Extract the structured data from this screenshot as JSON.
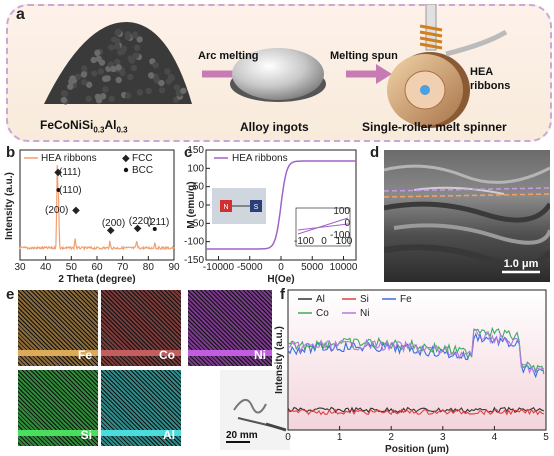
{
  "panel_a": {
    "label": "a",
    "steps": [
      {
        "caption": "FeCoNiSi",
        "sub1": "0.3",
        "mid": "Al",
        "sub2": "0.3"
      },
      {
        "caption": "Alloy ingots"
      },
      {
        "caption": "Single-roller melt spinner"
      }
    ],
    "arrow1": "Arc melting",
    "arrow2": "Melting spun",
    "ribbon_label_1": "HEA",
    "ribbon_label_2": "ribbons",
    "colors": {
      "border": "#c9a8d8",
      "bg_top": "#fdeee6",
      "bg_bottom": "#f7ead9",
      "arrow": "#c77bb3"
    }
  },
  "panel_b": {
    "label": "b",
    "legend": "HEA ribbons",
    "key_fcc": "FCC",
    "key_bcc": "BCC",
    "peaks": [
      "(111)",
      "(110)",
      "(200)",
      "(200)",
      "(220)",
      "(211)"
    ],
    "chart_data": {
      "type": "line",
      "xlabel": "2 Theta (degree)",
      "ylabel": "Intensity (a.u.)",
      "xlim": [
        30,
        90
      ],
      "xticks": [
        "30",
        "40",
        "50",
        "60",
        "70",
        "80",
        "90"
      ],
      "peak_positions": [
        44.5,
        45.0,
        51.5,
        65.0,
        75.5,
        82.5
      ],
      "color": "#f0a070"
    }
  },
  "panel_c": {
    "label": "c",
    "legend": "HEA ribbons",
    "magnet_n": "N",
    "magnet_s": "S",
    "chart_data": {
      "type": "line",
      "xlabel": "H(Oe)",
      "ylabel": "M (emu/g)",
      "xlim": [
        -12000,
        12000
      ],
      "ylim": [
        -150,
        150
      ],
      "xticks": [
        "-10000",
        "-5000",
        "0",
        "5000",
        "10000"
      ],
      "yticks": [
        "-150",
        "-100",
        "-50",
        "0",
        "50",
        "100",
        "150"
      ],
      "saturation": 120,
      "color": "#a064c8",
      "inset": {
        "xticks": [
          "-100",
          "0",
          "100"
        ],
        "yticks": [
          "-100",
          "0",
          "100"
        ]
      }
    }
  },
  "panel_d": {
    "label": "d",
    "scale": "1.0 μm"
  },
  "panel_e": {
    "label": "e",
    "maps": [
      {
        "name": "Fe",
        "color": "#8a6a38"
      },
      {
        "name": "Co",
        "color": "#7a3b3b"
      },
      {
        "name": "Ni",
        "color": "#7a3a8c"
      },
      {
        "name": "Si",
        "color": "#2f8a3a"
      },
      {
        "name": "Al",
        "color": "#2f8a8a"
      }
    ],
    "scale": "20 mm"
  },
  "panel_f": {
    "label": "f",
    "chart_data": {
      "type": "line",
      "xlabel": "Position (μm)",
      "ylabel": "Intensity (a.u.)",
      "xlim": [
        0,
        5
      ],
      "xticks": [
        "0",
        "1",
        "2",
        "3",
        "4",
        "5"
      ],
      "series": [
        {
          "name": "Al",
          "color": "#333333"
        },
        {
          "name": "Si",
          "color": "#e04040"
        },
        {
          "name": "Fe",
          "color": "#3a6ee0"
        },
        {
          "name": "Co",
          "color": "#3aaa60"
        },
        {
          "name": "Ni",
          "color": "#b07ae0"
        }
      ]
    }
  }
}
